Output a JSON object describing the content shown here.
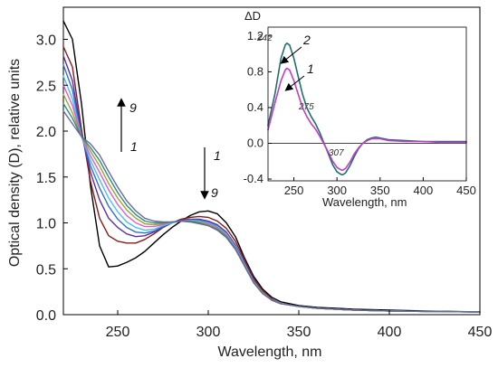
{
  "chart_data": [
    {
      "type": "line",
      "xlabel": "Wavelength, nm",
      "ylabel": "Optical density (D), relative units",
      "xlim": [
        220,
        450
      ],
      "ylim": [
        0,
        3.35
      ],
      "xticks": [
        "250",
        "300",
        "350",
        "400",
        "450"
      ],
      "yticks": [
        "0.0",
        "0.5",
        "1.0",
        "1.5",
        "2.0",
        "2.5",
        "3.0"
      ],
      "grid": false,
      "annotations": [
        {
          "text": "9",
          "role": "upward-arrow-end"
        },
        {
          "text": "1",
          "role": "upward-arrow-start"
        },
        {
          "text": "1",
          "role": "downward-arrow-start"
        },
        {
          "text": "9",
          "role": "downward-arrow-end"
        }
      ],
      "series": [
        {
          "color": "#000000",
          "x": [
            220,
            225,
            230,
            235,
            240,
            245,
            250,
            255,
            260,
            265,
            270,
            275,
            280,
            285,
            290,
            295,
            300,
            305,
            310,
            315,
            320,
            325,
            330,
            335,
            340,
            350,
            360,
            380,
            400,
            420,
            450
          ],
          "y": [
            3.2,
            3.0,
            2.3,
            1.4,
            0.75,
            0.52,
            0.53,
            0.57,
            0.62,
            0.69,
            0.78,
            0.87,
            0.95,
            1.02,
            1.08,
            1.12,
            1.13,
            1.1,
            1.0,
            0.85,
            0.62,
            0.42,
            0.28,
            0.19,
            0.14,
            0.1,
            0.08,
            0.06,
            0.05,
            0.04,
            0.03
          ]
        },
        {
          "color": "#8b1a1a",
          "x": [
            220,
            225,
            230,
            235,
            240,
            245,
            250,
            255,
            260,
            265,
            270,
            275,
            280,
            285,
            290,
            295,
            300,
            305,
            310,
            315,
            320,
            325,
            330,
            335,
            340,
            350,
            360,
            380,
            400,
            420,
            450
          ],
          "y": [
            2.92,
            2.7,
            2.02,
            1.45,
            1.05,
            0.86,
            0.8,
            0.78,
            0.78,
            0.82,
            0.88,
            0.95,
            1.0,
            1.04,
            1.06,
            1.07,
            1.06,
            1.02,
            0.94,
            0.8,
            0.6,
            0.4,
            0.26,
            0.17,
            0.12,
            0.09,
            0.07,
            0.05,
            0.04,
            0.035,
            0.03
          ]
        },
        {
          "color": "#5b2fa0",
          "x": [
            220,
            225,
            230,
            235,
            240,
            245,
            250,
            255,
            260,
            265,
            270,
            275,
            280,
            285,
            290,
            295,
            300,
            305,
            310,
            315,
            320,
            325,
            330,
            335,
            340,
            350,
            360,
            380,
            400,
            420,
            450
          ],
          "y": [
            2.82,
            2.55,
            1.97,
            1.55,
            1.25,
            1.05,
            0.95,
            0.88,
            0.85,
            0.86,
            0.9,
            0.96,
            1.0,
            1.03,
            1.04,
            1.04,
            1.02,
            0.98,
            0.9,
            0.76,
            0.57,
            0.38,
            0.25,
            0.16,
            0.12,
            0.09,
            0.07,
            0.05,
            0.04,
            0.035,
            0.03
          ]
        },
        {
          "color": "#2e6fd6",
          "x": [
            220,
            225,
            230,
            235,
            240,
            245,
            250,
            255,
            260,
            265,
            270,
            275,
            280,
            285,
            290,
            295,
            300,
            305,
            310,
            315,
            320,
            325,
            330,
            335,
            340,
            350,
            360,
            380,
            400,
            420,
            450
          ],
          "y": [
            2.72,
            2.45,
            1.95,
            1.62,
            1.38,
            1.18,
            1.04,
            0.95,
            0.9,
            0.89,
            0.91,
            0.96,
            1.0,
            1.02,
            1.03,
            1.03,
            1.01,
            0.97,
            0.89,
            0.75,
            0.56,
            0.37,
            0.24,
            0.16,
            0.12,
            0.09,
            0.07,
            0.05,
            0.04,
            0.035,
            0.03
          ]
        },
        {
          "color": "#49c3e8",
          "x": [
            220,
            225,
            230,
            235,
            240,
            245,
            250,
            255,
            260,
            265,
            270,
            275,
            280,
            285,
            290,
            295,
            300,
            305,
            310,
            315,
            320,
            325,
            330,
            335,
            340,
            350,
            360,
            380,
            400,
            420,
            450
          ],
          "y": [
            2.6,
            2.35,
            1.94,
            1.68,
            1.47,
            1.27,
            1.12,
            1.01,
            0.95,
            0.92,
            0.93,
            0.97,
            1.0,
            1.02,
            1.03,
            1.02,
            1.0,
            0.96,
            0.88,
            0.74,
            0.55,
            0.36,
            0.24,
            0.16,
            0.12,
            0.09,
            0.07,
            0.05,
            0.04,
            0.035,
            0.03
          ]
        },
        {
          "color": "#e05ad6",
          "x": [
            220,
            225,
            230,
            235,
            240,
            245,
            250,
            255,
            260,
            265,
            270,
            275,
            280,
            285,
            290,
            295,
            300,
            305,
            310,
            315,
            320,
            325,
            330,
            335,
            340,
            350,
            360,
            380,
            400,
            420,
            450
          ],
          "y": [
            2.5,
            2.28,
            1.94,
            1.73,
            1.55,
            1.36,
            1.2,
            1.08,
            1.0,
            0.96,
            0.96,
            0.98,
            1.01,
            1.02,
            1.02,
            1.01,
            0.99,
            0.95,
            0.87,
            0.73,
            0.54,
            0.36,
            0.24,
            0.16,
            0.12,
            0.09,
            0.07,
            0.05,
            0.04,
            0.035,
            0.03
          ]
        },
        {
          "color": "#a8a032",
          "x": [
            220,
            225,
            230,
            235,
            240,
            245,
            250,
            255,
            260,
            265,
            270,
            275,
            280,
            285,
            290,
            295,
            300,
            305,
            310,
            315,
            320,
            325,
            330,
            335,
            340,
            350,
            360,
            380,
            400,
            420,
            450
          ],
          "y": [
            2.4,
            2.2,
            1.94,
            1.78,
            1.62,
            1.43,
            1.27,
            1.14,
            1.05,
            0.99,
            0.98,
            0.99,
            1.01,
            1.02,
            1.02,
            1.01,
            0.98,
            0.94,
            0.86,
            0.72,
            0.54,
            0.36,
            0.24,
            0.16,
            0.12,
            0.09,
            0.07,
            0.05,
            0.04,
            0.035,
            0.03
          ]
        },
        {
          "color": "#2a8a8a",
          "x": [
            220,
            225,
            230,
            235,
            240,
            245,
            250,
            255,
            260,
            265,
            270,
            275,
            280,
            285,
            290,
            295,
            300,
            305,
            310,
            315,
            320,
            325,
            330,
            335,
            340,
            350,
            360,
            380,
            400,
            420,
            450
          ],
          "y": [
            2.3,
            2.14,
            1.94,
            1.82,
            1.68,
            1.5,
            1.33,
            1.19,
            1.09,
            1.02,
            1.0,
            1.0,
            1.01,
            1.02,
            1.02,
            1.0,
            0.97,
            0.93,
            0.85,
            0.72,
            0.53,
            0.35,
            0.23,
            0.16,
            0.12,
            0.09,
            0.07,
            0.05,
            0.04,
            0.035,
            0.03
          ]
        },
        {
          "color": "#6a6a9a",
          "x": [
            220,
            225,
            230,
            235,
            240,
            245,
            250,
            255,
            260,
            265,
            270,
            275,
            280,
            285,
            290,
            295,
            300,
            305,
            310,
            315,
            320,
            325,
            330,
            335,
            340,
            350,
            360,
            380,
            400,
            420,
            450
          ],
          "y": [
            2.22,
            2.08,
            1.94,
            1.86,
            1.74,
            1.56,
            1.39,
            1.24,
            1.13,
            1.05,
            1.02,
            1.01,
            1.01,
            1.02,
            1.01,
            0.99,
            0.97,
            0.92,
            0.84,
            0.71,
            0.53,
            0.35,
            0.23,
            0.16,
            0.12,
            0.09,
            0.07,
            0.05,
            0.04,
            0.035,
            0.03
          ]
        }
      ]
    },
    {
      "type": "line",
      "ylabel": "ΔD",
      "xlabel": "Wavelength, nm",
      "xlim": [
        220,
        450
      ],
      "ylim": [
        -0.42,
        1.3
      ],
      "xticks": [
        "250",
        "300",
        "350",
        "400",
        "450"
      ],
      "yticks": [
        "-0.4",
        "0.0",
        "0.4",
        "0.8",
        "1.2"
      ],
      "annotations": [
        {
          "text": "242",
          "x": 242
        },
        {
          "text": "275",
          "x": 275
        },
        {
          "text": "307",
          "x": 307
        },
        {
          "text": "2",
          "role": "curve-label"
        },
        {
          "text": "1",
          "role": "curve-label"
        }
      ],
      "series": [
        {
          "color": "#1f6f6f",
          "x": [
            220,
            228,
            235,
            240,
            242,
            245,
            250,
            255,
            260,
            265,
            270,
            275,
            280,
            285,
            290,
            295,
            300,
            305,
            307,
            310,
            315,
            320,
            325,
            330,
            335,
            340,
            345,
            350,
            360,
            380,
            400,
            420,
            450
          ],
          "y": [
            0.2,
            0.55,
            0.95,
            1.1,
            1.12,
            1.1,
            0.95,
            0.75,
            0.55,
            0.4,
            0.3,
            0.22,
            0.12,
            0.0,
            -0.12,
            -0.24,
            -0.32,
            -0.35,
            -0.35,
            -0.33,
            -0.25,
            -0.15,
            -0.06,
            0.0,
            0.04,
            0.06,
            0.07,
            0.06,
            0.04,
            0.03,
            0.02,
            0.02,
            0.02
          ]
        },
        {
          "color": "#c43cc8",
          "x": [
            220,
            228,
            235,
            240,
            242,
            245,
            250,
            255,
            260,
            265,
            270,
            275,
            280,
            285,
            290,
            295,
            300,
            305,
            307,
            310,
            315,
            320,
            325,
            330,
            335,
            340,
            345,
            350,
            360,
            380,
            400,
            420,
            450
          ],
          "y": [
            0.15,
            0.45,
            0.7,
            0.82,
            0.84,
            0.82,
            0.7,
            0.55,
            0.4,
            0.3,
            0.22,
            0.16,
            0.08,
            -0.01,
            -0.1,
            -0.2,
            -0.27,
            -0.3,
            -0.3,
            -0.28,
            -0.21,
            -0.12,
            -0.05,
            0.0,
            0.03,
            0.05,
            0.05,
            0.05,
            0.03,
            0.02,
            0.02,
            0.01,
            0.01
          ]
        }
      ]
    }
  ]
}
